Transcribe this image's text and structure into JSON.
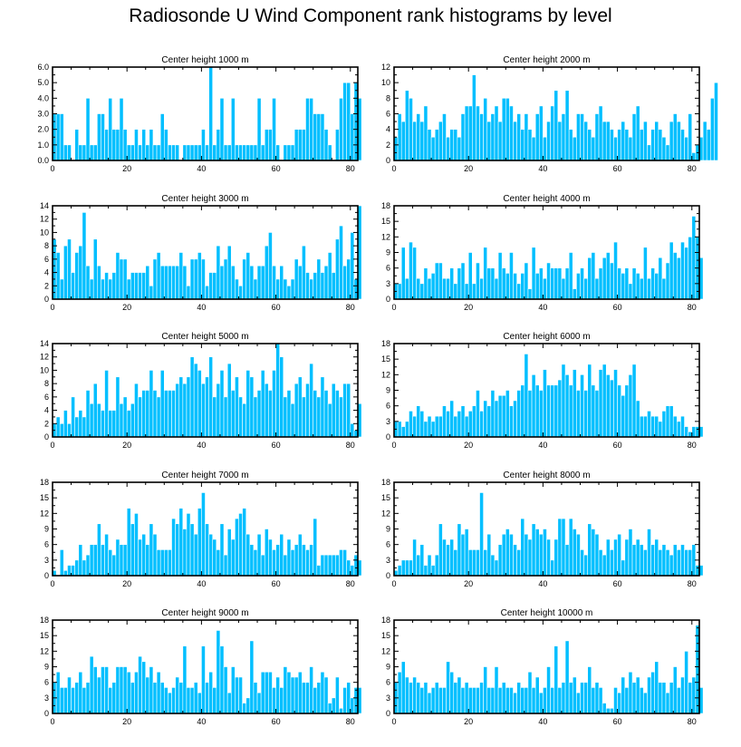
{
  "page_title": "Radiosonde U Wind Component rank histograms by level",
  "chart_data": [
    {
      "type": "bar",
      "title": "Center height 1000 m",
      "ylim": [
        0,
        6.0
      ],
      "yticks": [
        0,
        1,
        2,
        3,
        4,
        5,
        6
      ],
      "ytick_labels": [
        "0.0",
        "1.0",
        "2.0",
        "3.0",
        "4.0",
        "5.0",
        "6.0"
      ],
      "xlim": [
        0,
        82
      ],
      "xticks": [
        0,
        20,
        40,
        60,
        80
      ],
      "values": [
        3,
        3,
        3,
        1,
        1,
        0,
        2,
        1,
        1,
        4,
        1,
        1,
        3,
        3,
        2,
        4,
        2,
        2,
        4,
        2,
        1,
        1,
        2,
        1,
        2,
        1,
        2,
        1,
        1,
        3,
        2,
        1,
        1,
        1,
        0,
        1,
        1,
        1,
        1,
        1,
        2,
        1,
        6,
        1,
        2,
        4,
        1,
        1,
        4,
        1,
        1,
        1,
        1,
        1,
        1,
        4,
        1,
        2,
        2,
        4,
        1,
        0,
        1,
        1,
        1,
        2,
        2,
        2,
        4,
        4,
        3,
        3,
        3,
        2,
        1,
        0,
        2,
        4,
        5,
        5,
        3,
        5,
        4
      ]
    },
    {
      "type": "bar",
      "title": "Center height 2000 m",
      "ylim": [
        0,
        12
      ],
      "yticks": [
        0,
        2,
        4,
        6,
        8,
        10,
        12
      ],
      "ytick_labels": [
        "0",
        "2",
        "4",
        "6",
        "8",
        "10",
        "12"
      ],
      "xlim": [
        0,
        82
      ],
      "xticks": [
        0,
        20,
        40,
        60,
        80
      ],
      "values": [
        3,
        6,
        5,
        9,
        8,
        5,
        6,
        5,
        7,
        4,
        3,
        4,
        5,
        6,
        3,
        4,
        4,
        3,
        6,
        7,
        7,
        11,
        7,
        6,
        8,
        5,
        6,
        7,
        5,
        8,
        8,
        7,
        5,
        6,
        4,
        6,
        4,
        3,
        6,
        7,
        3,
        5,
        7,
        9,
        5,
        6,
        9,
        4,
        3,
        6,
        6,
        5,
        4,
        3,
        6,
        7,
        5,
        5,
        4,
        3,
        4,
        5,
        4,
        3,
        6,
        7,
        4,
        5,
        2,
        4,
        5,
        4,
        3,
        2,
        5,
        6,
        5,
        4,
        3,
        6,
        1,
        2,
        3,
        5,
        4,
        8,
        10
      ]
    },
    {
      "type": "bar",
      "title": "Center height 3000 m",
      "ylim": [
        0,
        14
      ],
      "yticks": [
        0,
        2,
        4,
        6,
        8,
        10,
        12,
        14
      ],
      "ytick_labels": [
        "0",
        "2",
        "4",
        "6",
        "8",
        "10",
        "12",
        "14"
      ],
      "xlim": [
        0,
        82
      ],
      "xticks": [
        0,
        20,
        40,
        60,
        80
      ],
      "values": [
        9,
        7,
        3,
        8,
        9,
        4,
        7,
        8,
        13,
        5,
        3,
        9,
        5,
        3,
        4,
        3,
        4,
        7,
        6,
        6,
        3,
        4,
        4,
        4,
        4,
        5,
        2,
        6,
        7,
        5,
        5,
        5,
        5,
        5,
        7,
        5,
        2,
        6,
        6,
        7,
        6,
        2,
        4,
        4,
        8,
        5,
        6,
        8,
        5,
        3,
        2,
        6,
        7,
        5,
        3,
        5,
        5,
        8,
        10,
        5,
        3,
        5,
        3,
        2,
        3,
        6,
        5,
        8,
        4,
        3,
        4,
        6,
        4,
        5,
        7,
        4,
        9,
        11,
        5,
        6,
        10,
        3,
        14
      ]
    },
    {
      "type": "bar",
      "title": "Center height 4000 m",
      "ylim": [
        0,
        18
      ],
      "yticks": [
        0,
        3,
        6,
        9,
        12,
        15,
        18
      ],
      "ytick_labels": [
        "0",
        "3",
        "6",
        "9",
        "12",
        "15",
        "18"
      ],
      "xlim": [
        0,
        82
      ],
      "xticks": [
        0,
        20,
        40,
        60,
        80
      ],
      "values": [
        3,
        3,
        10,
        4,
        11,
        10,
        4,
        3,
        6,
        4,
        5,
        7,
        7,
        4,
        4,
        6,
        3,
        6,
        7,
        3,
        9,
        3,
        7,
        4,
        10,
        6,
        6,
        4,
        9,
        6,
        5,
        9,
        5,
        3,
        5,
        7,
        2,
        10,
        5,
        6,
        4,
        7,
        6,
        6,
        6,
        4,
        6,
        9,
        2,
        5,
        6,
        4,
        8,
        9,
        4,
        6,
        8,
        9,
        7,
        11,
        6,
        5,
        6,
        3,
        6,
        5,
        4,
        10,
        4,
        6,
        5,
        8,
        4,
        7,
        11,
        9,
        8,
        11,
        10,
        12,
        16,
        12,
        8
      ]
    },
    {
      "type": "bar",
      "title": "Center height 5000 m",
      "ylim": [
        0,
        14
      ],
      "yticks": [
        0,
        2,
        4,
        6,
        8,
        10,
        12,
        14
      ],
      "ytick_labels": [
        "0",
        "2",
        "4",
        "6",
        "8",
        "10",
        "12",
        "14"
      ],
      "xlim": [
        0,
        82
      ],
      "xticks": [
        0,
        20,
        40,
        60,
        80
      ],
      "values": [
        2,
        3,
        2,
        4,
        2,
        6,
        3,
        4,
        3,
        7,
        5,
        8,
        5,
        4,
        10,
        4,
        4,
        9,
        5,
        6,
        4,
        5,
        8,
        6,
        7,
        7,
        10,
        7,
        6,
        10,
        7,
        7,
        7,
        8,
        9,
        8,
        9,
        12,
        11,
        10,
        8,
        9,
        12,
        6,
        8,
        10,
        6,
        11,
        7,
        9,
        6,
        5,
        10,
        9,
        6,
        7,
        10,
        8,
        7,
        10,
        14,
        12,
        6,
        7,
        5,
        8,
        9,
        6,
        8,
        11,
        7,
        6,
        9,
        7,
        5,
        8,
        7,
        6,
        8,
        8,
        2,
        1,
        5
      ]
    },
    {
      "type": "bar",
      "title": "Center height 6000 m",
      "ylim": [
        0,
        18
      ],
      "yticks": [
        0,
        3,
        6,
        9,
        12,
        15,
        18
      ],
      "ytick_labels": [
        "0",
        "3",
        "6",
        "9",
        "12",
        "15",
        "18"
      ],
      "xlim": [
        0,
        82
      ],
      "xticks": [
        0,
        20,
        40,
        60,
        80
      ],
      "values": [
        3,
        3,
        2,
        3,
        5,
        4,
        6,
        5,
        3,
        4,
        3,
        4,
        4,
        6,
        5,
        7,
        4,
        5,
        6,
        4,
        5,
        6,
        9,
        5,
        7,
        6,
        9,
        7,
        8,
        8,
        9,
        6,
        7,
        9,
        10,
        16,
        9,
        12,
        10,
        9,
        13,
        10,
        10,
        10,
        11,
        14,
        12,
        10,
        13,
        9,
        12,
        9,
        14,
        10,
        9,
        13,
        14,
        12,
        11,
        13,
        10,
        8,
        10,
        12,
        14,
        7,
        4,
        4,
        5,
        4,
        4,
        3,
        5,
        6,
        6,
        4,
        3,
        4,
        2,
        1,
        2,
        2,
        2
      ]
    },
    {
      "type": "bar",
      "title": "Center height 7000 m",
      "ylim": [
        0,
        18
      ],
      "yticks": [
        0,
        3,
        6,
        9,
        12,
        15,
        18
      ],
      "ytick_labels": [
        "0",
        "3",
        "6",
        "9",
        "12",
        "15",
        "18"
      ],
      "xlim": [
        0,
        82
      ],
      "xticks": [
        0,
        20,
        40,
        60,
        80
      ],
      "values": [
        1,
        0,
        5,
        1,
        2,
        2,
        3,
        6,
        3,
        4,
        6,
        6,
        10,
        6,
        8,
        5,
        4,
        7,
        6,
        6,
        13,
        10,
        12,
        7,
        8,
        6,
        10,
        8,
        5,
        5,
        5,
        5,
        11,
        10,
        13,
        9,
        12,
        10,
        8,
        13,
        16,
        10,
        8,
        7,
        5,
        10,
        4,
        9,
        7,
        11,
        12,
        13,
        8,
        6,
        5,
        8,
        4,
        9,
        7,
        5,
        6,
        8,
        4,
        7,
        5,
        6,
        8,
        6,
        5,
        6,
        11,
        2,
        4,
        4,
        4,
        4,
        4,
        5,
        5,
        3,
        2,
        4,
        3
      ]
    },
    {
      "type": "bar",
      "title": "Center height 8000 m",
      "ylim": [
        0,
        18
      ],
      "yticks": [
        0,
        3,
        6,
        9,
        12,
        15,
        18
      ],
      "ytick_labels": [
        "0",
        "3",
        "6",
        "9",
        "12",
        "15",
        "18"
      ],
      "xlim": [
        0,
        82
      ],
      "xticks": [
        0,
        20,
        40,
        60,
        80
      ],
      "values": [
        1,
        2,
        3,
        3,
        3,
        7,
        4,
        6,
        2,
        4,
        2,
        4,
        10,
        7,
        6,
        7,
        5,
        10,
        8,
        9,
        5,
        5,
        5,
        16,
        5,
        8,
        4,
        3,
        6,
        8,
        9,
        8,
        6,
        5,
        11,
        8,
        7,
        10,
        9,
        8,
        9,
        7,
        3,
        7,
        11,
        11,
        6,
        11,
        9,
        8,
        5,
        4,
        10,
        9,
        8,
        5,
        4,
        7,
        5,
        7,
        8,
        3,
        7,
        9,
        6,
        7,
        6,
        5,
        9,
        6,
        7,
        5,
        6,
        5,
        4,
        6,
        5,
        6,
        5,
        5,
        6,
        2,
        2
      ]
    },
    {
      "type": "bar",
      "title": "Center height 9000 m",
      "ylim": [
        0,
        18
      ],
      "yticks": [
        0,
        3,
        6,
        9,
        12,
        15,
        18
      ],
      "ytick_labels": [
        "0",
        "3",
        "6",
        "9",
        "12",
        "15",
        "18"
      ],
      "xlim": [
        0,
        82
      ],
      "xticks": [
        0,
        20,
        40,
        60,
        80
      ],
      "values": [
        6,
        8,
        5,
        5,
        7,
        5,
        6,
        8,
        5,
        6,
        11,
        9,
        7,
        9,
        9,
        5,
        6,
        9,
        9,
        9,
        8,
        6,
        8,
        11,
        10,
        7,
        9,
        6,
        8,
        6,
        5,
        4,
        5,
        7,
        6,
        13,
        5,
        5,
        6,
        4,
        13,
        6,
        8,
        5,
        16,
        13,
        9,
        4,
        9,
        7,
        7,
        2,
        3,
        14,
        6,
        4,
        8,
        8,
        8,
        5,
        7,
        5,
        9,
        8,
        7,
        7,
        8,
        6,
        6,
        9,
        5,
        6,
        8,
        7,
        2,
        3,
        7,
        1,
        5,
        6,
        3,
        5,
        5
      ]
    },
    {
      "type": "bar",
      "title": "Center height 10000 m",
      "ylim": [
        0,
        18
      ],
      "yticks": [
        0,
        3,
        6,
        9,
        12,
        15,
        18
      ],
      "ytick_labels": [
        "0",
        "3",
        "6",
        "9",
        "12",
        "15",
        "18"
      ],
      "xlim": [
        0,
        82
      ],
      "xticks": [
        0,
        20,
        40,
        60,
        80
      ],
      "values": [
        6,
        8,
        10,
        7,
        6,
        7,
        6,
        5,
        6,
        4,
        5,
        6,
        5,
        5,
        10,
        8,
        6,
        7,
        5,
        6,
        5,
        5,
        5,
        6,
        9,
        5,
        5,
        9,
        5,
        6,
        5,
        5,
        4,
        6,
        5,
        5,
        8,
        5,
        7,
        4,
        5,
        9,
        5,
        13,
        5,
        6,
        14,
        6,
        7,
        4,
        6,
        6,
        9,
        5,
        6,
        5,
        2,
        1,
        1,
        5,
        4,
        7,
        5,
        8,
        6,
        7,
        5,
        4,
        7,
        8,
        10,
        6,
        6,
        4,
        6,
        9,
        5,
        7,
        12,
        6,
        7,
        17,
        5
      ]
    }
  ]
}
